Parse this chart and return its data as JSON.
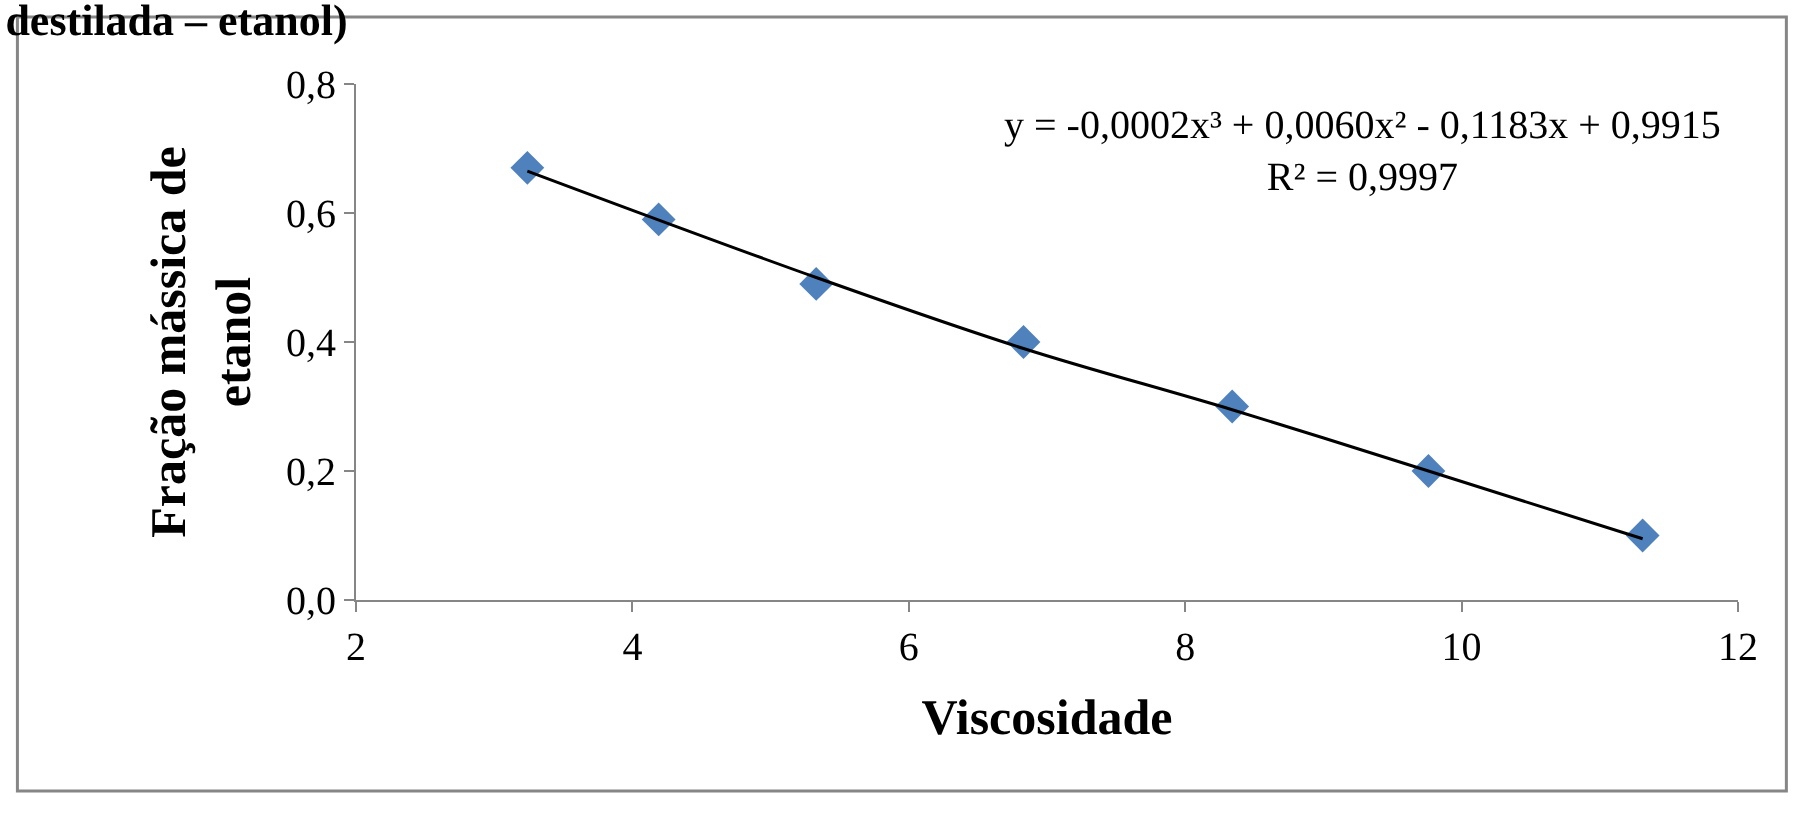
{
  "chart_data": {
    "type": "scatter",
    "title": "destilada – etanol)",
    "xlabel": "Viscosidade",
    "ylabel": "Fração mássica de\netanol",
    "annotations": [
      "y = -0,0002x³ + 0,0060x² - 0,1183x + 0,9915",
      "R² = 0,9997"
    ],
    "series": [
      {
        "color": "#4f81bd",
        "marker": "diamond",
        "x": [
          3.24,
          4.19,
          5.33,
          6.83,
          8.34,
          9.76,
          11.31
        ],
        "values": [
          0.67,
          0.59,
          0.49,
          0.4,
          0.3,
          0.2,
          0.1
        ]
      },
      {
        "type": "line",
        "color": "#000000",
        "marker": "none",
        "line_style": "solid",
        "x": [
          3.24,
          5.33,
          6.83,
          8.34,
          9.76,
          11.31
        ],
        "values": [
          0.665,
          0.5,
          0.39,
          0.295,
          0.2,
          0.095
        ]
      }
    ],
    "xlim": [
      2,
      12
    ],
    "xticks": [
      2,
      4,
      6,
      8,
      10,
      12
    ],
    "ylim": [
      0,
      0.8
    ],
    "yticks": [
      {
        "value": 0,
        "label": "0,0"
      },
      {
        "value": 0.2,
        "label": "0,2"
      },
      {
        "value": 0.4,
        "label": "0,4"
      },
      {
        "value": 0.6,
        "label": "0,6"
      },
      {
        "value": 0.8,
        "label": "0,8"
      }
    ]
  }
}
